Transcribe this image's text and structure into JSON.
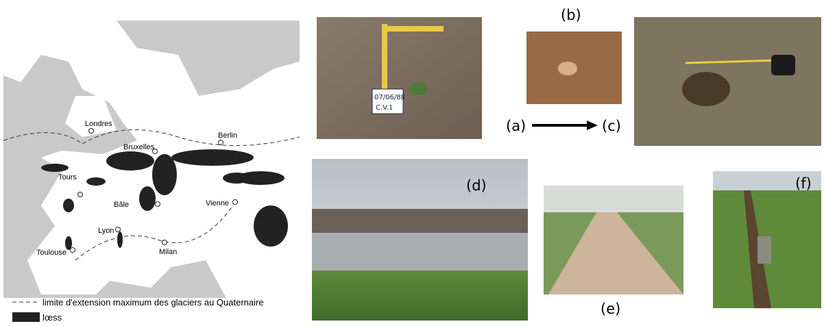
{
  "map": {
    "cities": [
      "Londres",
      "Berlin",
      "Bruxelles",
      "Tours",
      "Bâle",
      "Vienne",
      "Lyon",
      "Milan",
      "Toulouse"
    ],
    "legend": [
      "limite d'extension maximum des glaciers au Quaternaire",
      "lœss"
    ]
  },
  "panels": {
    "a": "(a)",
    "b": "(b)",
    "c": "(c)",
    "d": "(d)",
    "e": "(e)",
    "f": "(f)"
  },
  "photo_label": {
    "date": "07/06/88",
    "code": "C.V.1"
  }
}
